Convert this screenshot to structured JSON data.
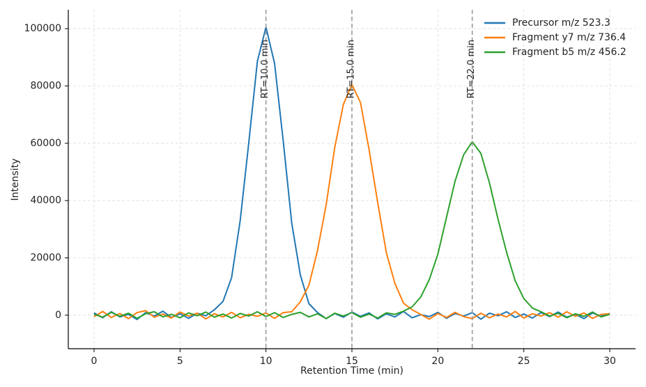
{
  "chart_data": {
    "type": "line",
    "x_label": "Retention Time (min)",
    "y_label": "Intensity",
    "x": [
      0,
      0.5,
      1,
      1.5,
      2,
      2.5,
      3,
      3.5,
      4,
      4.5,
      5,
      5.5,
      6,
      6.5,
      7,
      7.5,
      8,
      8.5,
      9,
      9.5,
      10,
      10.5,
      11,
      11.5,
      12,
      12.5,
      13,
      13.5,
      14,
      14.5,
      15,
      15.5,
      16,
      16.5,
      17,
      17.5,
      18,
      18.5,
      19,
      19.5,
      20,
      20.5,
      21,
      21.5,
      22,
      22.5,
      23,
      23.5,
      24,
      24.5,
      25,
      25.5,
      26,
      26.5,
      27,
      27.5,
      28,
      28.5,
      29,
      29.5,
      30
    ],
    "series": [
      {
        "name": "Precursor m/z 523.3",
        "color": "#1f77b4",
        "values": [
          800,
          -900,
          1200,
          -600,
          300,
          -1500,
          900,
          -300,
          1400,
          -800,
          500,
          -1100,
          700,
          -200,
          1900,
          4800,
          13100,
          33000,
          60200,
          88600,
          100500,
          87900,
          61000,
          32100,
          14000,
          4000,
          900,
          -1200,
          600,
          -700,
          1100,
          -400,
          800,
          -1300,
          500,
          -600,
          1300,
          -900,
          200,
          -500,
          1000,
          -1100,
          600,
          -300,
          900,
          -1400,
          700,
          -200,
          1200,
          -800,
          400,
          -1000,
          900,
          -500,
          1100,
          -700,
          300,
          -1200,
          800,
          -400,
          600
        ]
      },
      {
        "name": "Fragment y7 m/z 736.4",
        "color": "#ff7f0e",
        "values": [
          -500,
          1300,
          -800,
          600,
          -1200,
          900,
          1600,
          -700,
          400,
          -1000,
          1100,
          -300,
          700,
          -1300,
          500,
          -600,
          1000,
          -900,
          300,
          -400,
          800,
          -1100,
          900,
          1200,
          4700,
          10500,
          22600,
          38500,
          58500,
          73500,
          80500,
          74200,
          57700,
          39300,
          21900,
          11100,
          4200,
          1900,
          300,
          -1400,
          600,
          -800,
          1000,
          -500,
          -1200,
          700,
          -900,
          400,
          -600,
          1300,
          -1000,
          500,
          -300,
          900,
          -700,
          1200,
          -400,
          800,
          -1100,
          300,
          500
        ]
      },
      {
        "name": "Fragment b5 m/z 456.2",
        "color": "#2ca02c",
        "values": [
          300,
          -700,
          1000,
          -400,
          700,
          -1100,
          500,
          1200,
          -600,
          300,
          -900,
          800,
          -200,
          1100,
          -700,
          400,
          -1000,
          600,
          -300,
          1200,
          -500,
          900,
          -800,
          300,
          1000,
          -600,
          500,
          -1200,
          700,
          -300,
          900,
          -700,
          400,
          -1000,
          800,
          300,
          1400,
          2900,
          6300,
          12400,
          21300,
          34100,
          46800,
          56000,
          60500,
          56500,
          46200,
          33500,
          21900,
          12000,
          5800,
          2500,
          1200,
          -300,
          700,
          -900,
          500,
          -400,
          1100,
          -600,
          300
        ]
      }
    ],
    "vlines": [
      {
        "x": 10,
        "label": "RT=10.0 min"
      },
      {
        "x": 15,
        "label": "RT=15.0 min"
      },
      {
        "x": 22,
        "label": "RT=22.0 min"
      }
    ],
    "xlim": [
      -1.5,
      31.5
    ],
    "xticks": [
      0,
      5,
      10,
      15,
      20,
      25,
      30
    ],
    "ylim": [
      -11700,
      106600
    ],
    "yticks": [
      0,
      20000,
      40000,
      60000,
      80000,
      100000
    ],
    "grid": true,
    "legend": "upper right"
  }
}
